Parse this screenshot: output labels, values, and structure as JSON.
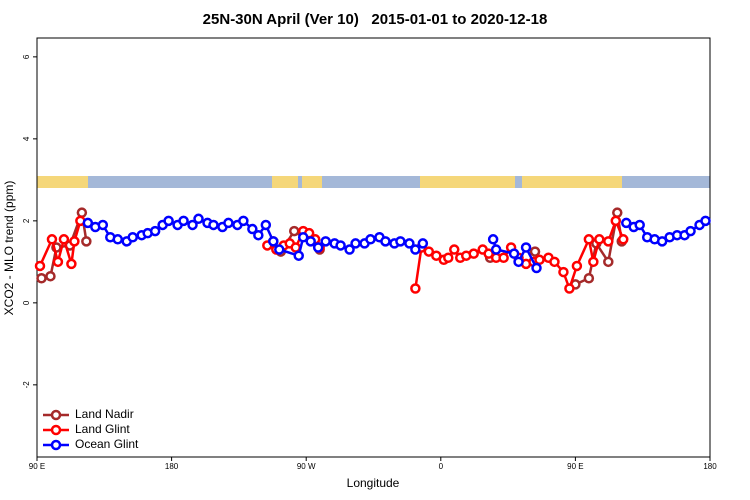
{
  "chart_data": {
    "type": "line",
    "title": "25N-30N April (Ver 10)   2015-01-01 to 2020-12-18",
    "x_label": "Longitude",
    "y_label": "XCO2 - MLO trend (ppm)",
    "xlim": [
      90,
      540
    ],
    "xticks": [
      {
        "value": 90,
        "label": "90 E"
      },
      {
        "value": 180,
        "label": "180"
      },
      {
        "value": 270,
        "label": "90 W"
      },
      {
        "value": 360,
        "label": "0"
      },
      {
        "value": 450,
        "label": "90 E"
      },
      {
        "value": 540,
        "label": "180"
      }
    ],
    "ylim": [
      -3.76,
      6.46
    ],
    "yticks": [
      -2,
      0,
      2,
      4,
      6
    ],
    "legend": "bottomleft",
    "series": [
      {
        "name": "Land Nadir",
        "color": "#a52a2a",
        "x": [
          93,
          99,
          103,
          112,
          120,
          123,
          null,
          248,
          253,
          262,
          279,
          null,
          393,
          null,
          423,
          null,
          450,
          459,
          464,
          472,
          478,
          481
        ],
        "values": [
          0.6,
          0.65,
          1.35,
          1.4,
          2.2,
          1.5,
          null,
          1.5,
          1.25,
          1.75,
          1.3,
          null,
          1.1,
          null,
          1.25,
          null,
          0.45,
          0.6,
          1.45,
          1.0,
          2.2,
          1.5
        ]
      },
      {
        "name": "Land Glint",
        "color": "#ff0000",
        "x": [
          92,
          100,
          104,
          108,
          113,
          115,
          119,
          null,
          244,
          250,
          255,
          259,
          263,
          268,
          272,
          276,
          279,
          null,
          343,
          347,
          352,
          357,
          362,
          365,
          369,
          373,
          377,
          382,
          388,
          392,
          397,
          402,
          407,
          412,
          417,
          422,
          426,
          432,
          436,
          442,
          446,
          451,
          459,
          462,
          466,
          472,
          477,
          482
        ],
        "values": [
          0.9,
          1.55,
          1.0,
          1.55,
          0.95,
          1.5,
          2.0,
          null,
          1.4,
          1.3,
          1.4,
          1.45,
          1.35,
          1.75,
          1.7,
          1.55,
          1.35,
          null,
          0.35,
          1.35,
          1.25,
          1.15,
          1.05,
          1.1,
          1.3,
          1.1,
          1.15,
          1.2,
          1.3,
          1.2,
          1.1,
          1.1,
          1.35,
          1.1,
          0.95,
          1.0,
          1.05,
          1.1,
          1.0,
          0.75,
          0.35,
          0.9,
          1.55,
          1.0,
          1.55,
          1.5,
          2.0,
          1.55
        ]
      },
      {
        "name": "Ocean Glint",
        "color": "#0000ff",
        "x": [
          124,
          129,
          134,
          139,
          144,
          150,
          154,
          160,
          164,
          169,
          174,
          178,
          184,
          188,
          194,
          198,
          204,
          208,
          214,
          218,
          224,
          228,
          234,
          238,
          243,
          248,
          252,
          265,
          268,
          273,
          278,
          283,
          289,
          293,
          299,
          303,
          309,
          313,
          319,
          323,
          329,
          333,
          339,
          343,
          348,
          null,
          395,
          397,
          409,
          412,
          417,
          424,
          null,
          484,
          489,
          493,
          498,
          503,
          508,
          513,
          518,
          523,
          527,
          533,
          537
        ],
        "values": [
          1.95,
          1.85,
          1.9,
          1.6,
          1.55,
          1.5,
          1.6,
          1.65,
          1.7,
          1.75,
          1.9,
          2.0,
          1.9,
          2.0,
          1.9,
          2.05,
          1.95,
          1.9,
          1.85,
          1.95,
          1.9,
          2.0,
          1.8,
          1.65,
          1.9,
          1.5,
          1.3,
          1.15,
          1.6,
          1.5,
          1.35,
          1.5,
          1.45,
          1.4,
          1.3,
          1.45,
          1.45,
          1.55,
          1.6,
          1.5,
          1.45,
          1.5,
          1.45,
          1.3,
          1.45,
          null,
          1.55,
          1.3,
          1.2,
          1.0,
          1.35,
          0.85,
          null,
          1.95,
          1.85,
          1.9,
          1.6,
          1.55,
          1.5,
          1.6,
          1.65,
          1.65,
          1.75,
          1.9,
          2.0
        ]
      }
    ]
  }
}
